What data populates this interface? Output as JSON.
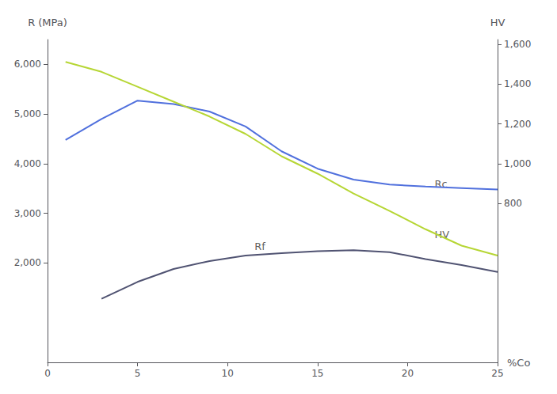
{
  "chart_data": {
    "type": "line",
    "x": [
      1,
      3,
      5,
      7,
      9,
      11,
      13,
      15,
      17,
      19,
      21,
      23,
      25
    ],
    "series": [
      {
        "values": [
          4480,
          4900,
          5270,
          5200,
          5050,
          4750,
          4250,
          3900,
          3680,
          3580,
          3540,
          3510,
          3480
        ]
      },
      {
        "values": [
          6050,
          5850,
          5550,
          5250,
          4950,
          4600,
          4150,
          3800,
          3400,
          3050,
          2680,
          2350,
          2150
        ]
      },
      {
        "values": [
          null,
          1280,
          1620,
          1880,
          2040,
          2150,
          2200,
          2240,
          2260,
          2220,
          2080,
          1960,
          1820
        ]
      }
    ],
    "xlabel": "%Co",
    "ylabel": "R (MPa)",
    "y2label": "HV",
    "xlim": [
      0,
      25
    ],
    "xticks": [
      0,
      5,
      10,
      15,
      20,
      25
    ],
    "ylim": [
      0,
      6500
    ],
    "yticks": [
      2000,
      3000,
      4000,
      5000,
      6000
    ],
    "y2lim": [
      0,
      1625
    ],
    "y2ticks": [
      800,
      1000,
      1200,
      1400,
      1600
    ],
    "annotations": [
      {
        "text": "Rc",
        "x": 21.5,
        "y": 3600
      },
      {
        "text": "HV",
        "x": 21.5,
        "y": 2580
      },
      {
        "text": "Rf",
        "x": 11.5,
        "y": 2330
      }
    ],
    "grid": false
  }
}
